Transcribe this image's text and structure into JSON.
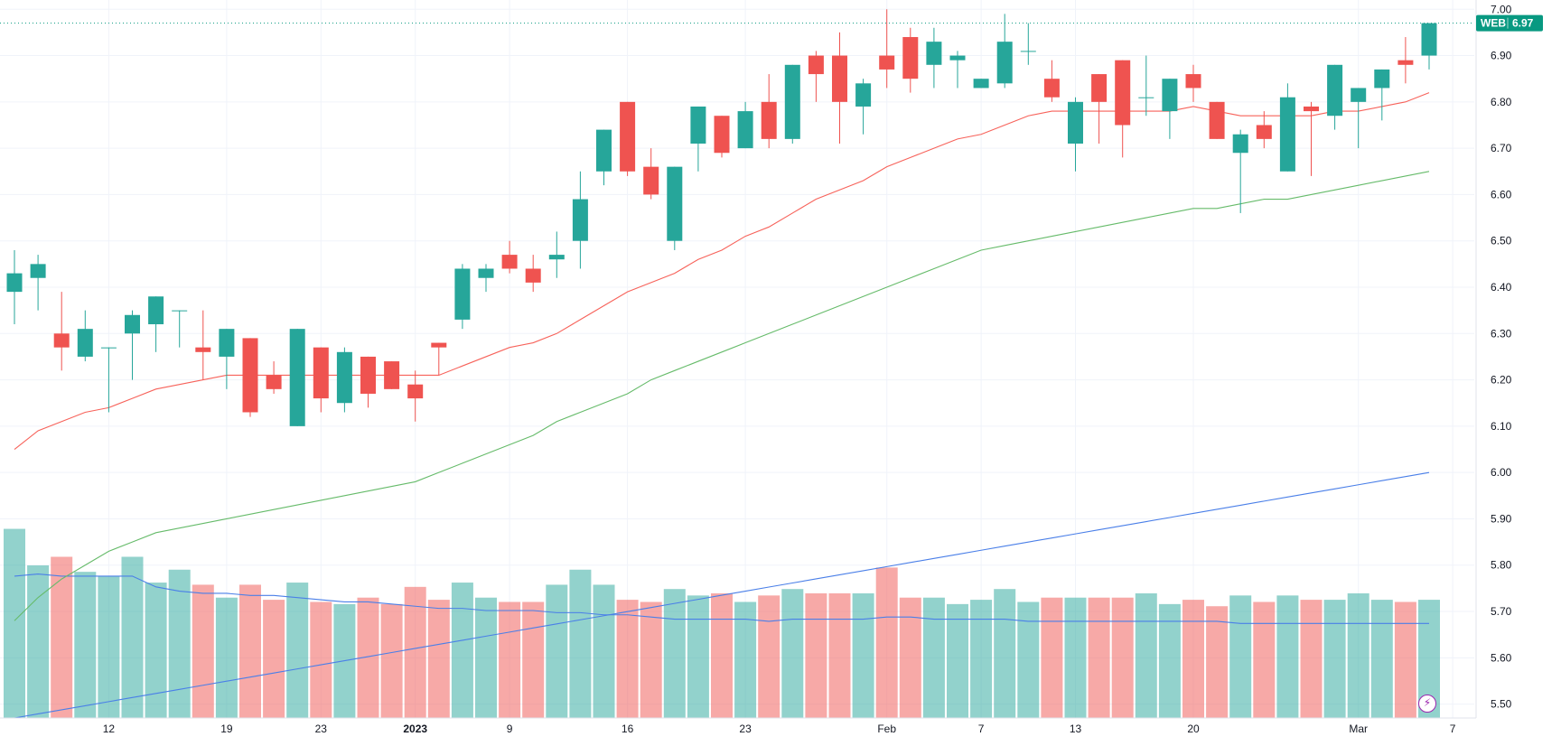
{
  "symbol_label": "WEB",
  "last_price_label": "6.97",
  "colors": {
    "up": "#26a69a",
    "down": "#ef5350",
    "up_volume": "#26a69a",
    "down_volume": "#ef5350",
    "ma_fast": "#f7625a",
    "ma_mid": "#66bb6a",
    "ma_slow": "#4a7fe8",
    "vol_ma": "#4a7fe8",
    "grid": "#f0f3fa",
    "badge": "#089981"
  },
  "flash_icon": "lightning-icon",
  "chart_data": {
    "type": "candlestick",
    "y_axis": {
      "min": 5.47,
      "max": 7.02,
      "ticks": [
        "5.50",
        "5.60",
        "5.70",
        "5.80",
        "5.90",
        "6.00",
        "6.10",
        "6.20",
        "6.30",
        "6.40",
        "6.50",
        "6.60",
        "6.70",
        "6.80",
        "6.90",
        "7.00"
      ]
    },
    "x_tick_labels": [
      {
        "label": "12",
        "bar": 4
      },
      {
        "label": "19",
        "bar": 9
      },
      {
        "label": "23",
        "bar": 13
      },
      {
        "label": "2023",
        "bar": 17,
        "bold": true
      },
      {
        "label": "9",
        "bar": 21
      },
      {
        "label": "16",
        "bar": 26
      },
      {
        "label": "23",
        "bar": 31
      },
      {
        "label": "Feb",
        "bar": 37
      },
      {
        "label": "7",
        "bar": 41
      },
      {
        "label": "13",
        "bar": 45
      },
      {
        "label": "20",
        "bar": 50
      },
      {
        "label": "Mar",
        "bar": 57
      },
      {
        "label": "7",
        "bar": 61
      }
    ],
    "ohlc": [
      [
        6.39,
        6.48,
        6.32,
        6.43
      ],
      [
        6.42,
        6.47,
        6.35,
        6.45
      ],
      [
        6.3,
        6.39,
        6.22,
        6.27
      ],
      [
        6.25,
        6.35,
        6.24,
        6.31
      ],
      [
        6.27,
        6.27,
        6.13,
        6.27
      ],
      [
        6.3,
        6.35,
        6.2,
        6.34
      ],
      [
        6.32,
        6.38,
        6.26,
        6.38
      ],
      [
        6.35,
        6.35,
        6.27,
        6.35
      ],
      [
        6.27,
        6.35,
        6.2,
        6.26
      ],
      [
        6.25,
        6.31,
        6.18,
        6.31
      ],
      [
        6.29,
        6.29,
        6.12,
        6.13
      ],
      [
        6.21,
        6.24,
        6.17,
        6.18
      ],
      [
        6.1,
        6.31,
        6.1,
        6.31
      ],
      [
        6.27,
        6.27,
        6.13,
        6.16
      ],
      [
        6.15,
        6.27,
        6.13,
        6.26
      ],
      [
        6.25,
        6.25,
        6.14,
        6.17
      ],
      [
        6.24,
        6.24,
        6.18,
        6.18
      ],
      [
        6.19,
        6.22,
        6.11,
        6.16
      ],
      [
        6.28,
        6.28,
        6.21,
        6.27
      ],
      [
        6.33,
        6.45,
        6.31,
        6.44
      ],
      [
        6.42,
        6.45,
        6.39,
        6.44
      ],
      [
        6.47,
        6.5,
        6.43,
        6.44
      ],
      [
        6.44,
        6.47,
        6.39,
        6.41
      ],
      [
        6.46,
        6.52,
        6.42,
        6.47
      ],
      [
        6.5,
        6.65,
        6.44,
        6.59
      ],
      [
        6.65,
        6.74,
        6.62,
        6.74
      ],
      [
        6.8,
        6.8,
        6.64,
        6.65
      ],
      [
        6.66,
        6.7,
        6.59,
        6.6
      ],
      [
        6.5,
        6.66,
        6.48,
        6.66
      ],
      [
        6.71,
        6.79,
        6.65,
        6.79
      ],
      [
        6.77,
        6.77,
        6.68,
        6.69
      ],
      [
        6.7,
        6.8,
        6.7,
        6.78
      ],
      [
        6.8,
        6.86,
        6.7,
        6.72
      ],
      [
        6.72,
        6.88,
        6.71,
        6.88
      ],
      [
        6.9,
        6.91,
        6.8,
        6.86
      ],
      [
        6.9,
        6.95,
        6.71,
        6.8
      ],
      [
        6.79,
        6.85,
        6.73,
        6.84
      ],
      [
        6.9,
        7.0,
        6.83,
        6.87
      ],
      [
        6.94,
        6.96,
        6.82,
        6.85
      ],
      [
        6.88,
        6.96,
        6.83,
        6.93
      ],
      [
        6.89,
        6.91,
        6.83,
        6.9
      ],
      [
        6.83,
        6.85,
        6.83,
        6.85
      ],
      [
        6.84,
        6.99,
        6.83,
        6.93
      ],
      [
        6.91,
        6.97,
        6.88,
        6.91
      ],
      [
        6.85,
        6.89,
        6.8,
        6.81
      ],
      [
        6.71,
        6.81,
        6.65,
        6.8
      ],
      [
        6.86,
        6.86,
        6.71,
        6.8
      ],
      [
        6.89,
        6.89,
        6.68,
        6.75
      ],
      [
        6.81,
        6.9,
        6.77,
        6.81
      ],
      [
        6.78,
        6.85,
        6.72,
        6.85
      ],
      [
        6.86,
        6.88,
        6.8,
        6.83
      ],
      [
        6.8,
        6.8,
        6.72,
        6.72
      ],
      [
        6.69,
        6.74,
        6.56,
        6.73
      ],
      [
        6.75,
        6.78,
        6.7,
        6.72
      ],
      [
        6.65,
        6.84,
        6.65,
        6.81
      ],
      [
        6.79,
        6.8,
        6.64,
        6.78
      ],
      [
        6.77,
        6.88,
        6.74,
        6.88
      ],
      [
        6.8,
        6.83,
        6.7,
        6.83
      ],
      [
        6.83,
        6.87,
        6.76,
        6.87
      ],
      [
        6.89,
        6.94,
        6.84,
        6.88
      ],
      [
        6.9,
        6.97,
        6.87,
        6.97
      ]
    ],
    "volume": [
      88,
      71,
      75,
      68,
      66,
      75,
      63,
      69,
      62,
      56,
      62,
      55,
      63,
      54,
      53,
      56,
      53,
      61,
      55,
      63,
      56,
      54,
      54,
      62,
      69,
      62,
      55,
      54,
      60,
      57,
      58,
      54,
      57,
      60,
      58,
      58,
      58,
      70,
      56,
      56,
      53,
      55,
      60,
      54,
      56,
      56,
      56,
      56,
      58,
      53,
      55,
      52,
      57,
      54,
      57,
      55,
      55,
      58,
      55,
      54,
      55
    ],
    "volume_scale_max": 100,
    "ma_fast": [
      6.05,
      6.09,
      6.11,
      6.13,
      6.14,
      6.16,
      6.18,
      6.19,
      6.2,
      6.21,
      6.21,
      6.21,
      6.21,
      6.21,
      6.21,
      6.21,
      6.21,
      6.21,
      6.21,
      6.23,
      6.25,
      6.27,
      6.28,
      6.3,
      6.33,
      6.36,
      6.39,
      6.41,
      6.43,
      6.46,
      6.48,
      6.51,
      6.53,
      6.56,
      6.59,
      6.61,
      6.63,
      6.66,
      6.68,
      6.7,
      6.72,
      6.73,
      6.75,
      6.77,
      6.78,
      6.78,
      6.78,
      6.78,
      6.78,
      6.78,
      6.79,
      6.78,
      6.77,
      6.77,
      6.77,
      6.77,
      6.78,
      6.78,
      6.79,
      6.8,
      6.82
    ],
    "ma_mid": [
      5.68,
      5.73,
      5.77,
      5.8,
      5.83,
      5.85,
      5.87,
      5.88,
      5.89,
      5.9,
      5.91,
      5.92,
      5.93,
      5.94,
      5.95,
      5.96,
      5.97,
      5.98,
      6.0,
      6.02,
      6.04,
      6.06,
      6.08,
      6.11,
      6.13,
      6.15,
      6.17,
      6.2,
      6.22,
      6.24,
      6.26,
      6.28,
      6.3,
      6.32,
      6.34,
      6.36,
      6.38,
      6.4,
      6.42,
      6.44,
      6.46,
      6.48,
      6.49,
      6.5,
      6.51,
      6.52,
      6.53,
      6.54,
      6.55,
      6.56,
      6.57,
      6.57,
      6.58,
      6.59,
      6.59,
      6.6,
      6.61,
      6.62,
      6.63,
      6.64,
      6.65
    ],
    "ma_slow_start": 5.47,
    "ma_slow_end": 6.0,
    "vol_ma": [
      66,
      67,
      66,
      66,
      66,
      66,
      61,
      59,
      58,
      58,
      57,
      57,
      56,
      55,
      54,
      54,
      53,
      52,
      51,
      51,
      50,
      50,
      50,
      49,
      49,
      48,
      48,
      47,
      46,
      46,
      46,
      46,
      45,
      46,
      46,
      46,
      46,
      47,
      47,
      46,
      46,
      46,
      46,
      45,
      45,
      45,
      45,
      45,
      45,
      45,
      45,
      45,
      44,
      44,
      44,
      44,
      44,
      44,
      44,
      44,
      44
    ]
  }
}
